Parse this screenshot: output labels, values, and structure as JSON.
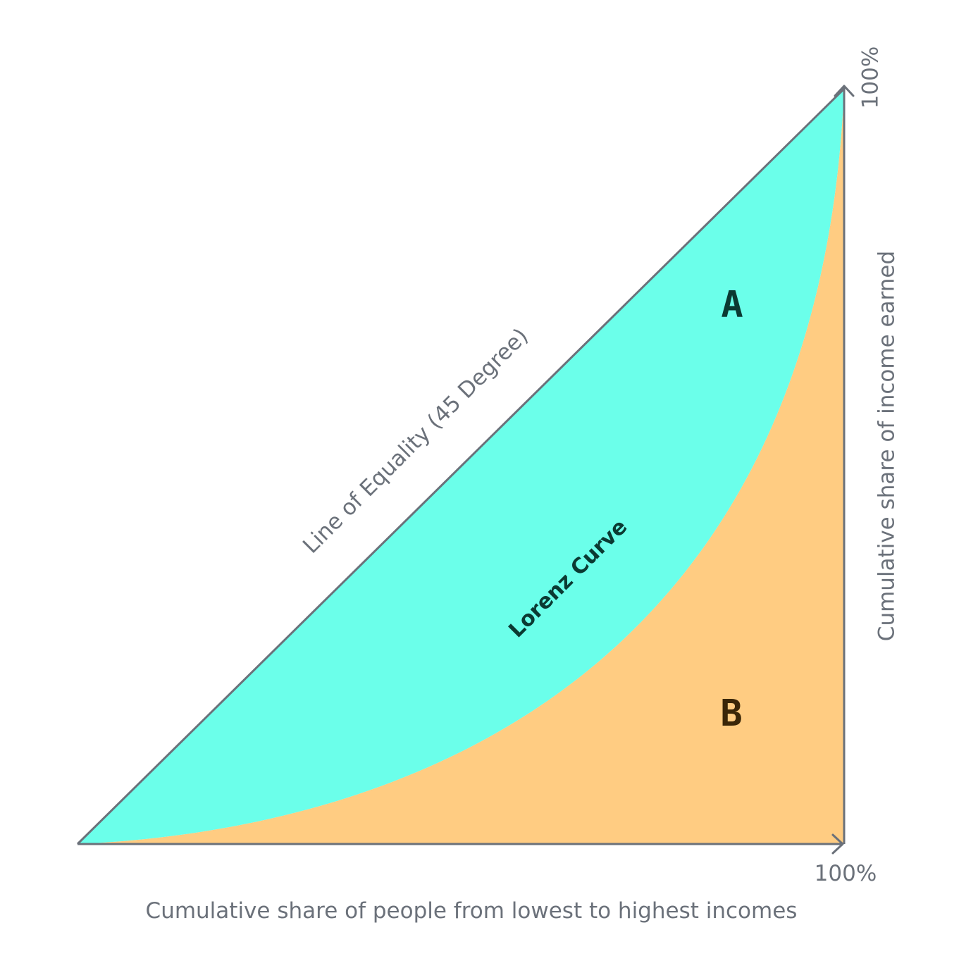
{
  "colors": {
    "region_a_fill": "#6bffea",
    "region_b_fill": "#ffcc82",
    "axis_stroke": "#6b717a",
    "axis_text": "#6b717a",
    "curve_label": "#0b3a32",
    "letter_a": "#0b3a32",
    "letter_b": "#3a2608"
  },
  "labels": {
    "x_axis_end": "100%",
    "y_axis_end": "100%",
    "x_axis_title": "Cumulative share of people from lowest to highest incomes",
    "y_axis_title": "Cumulative share of income earned",
    "equality_line": "Line of Equality (45 Degree)",
    "lorenz_curve": "Lorenz Curve",
    "region_a": "A",
    "region_b": "B"
  }
}
